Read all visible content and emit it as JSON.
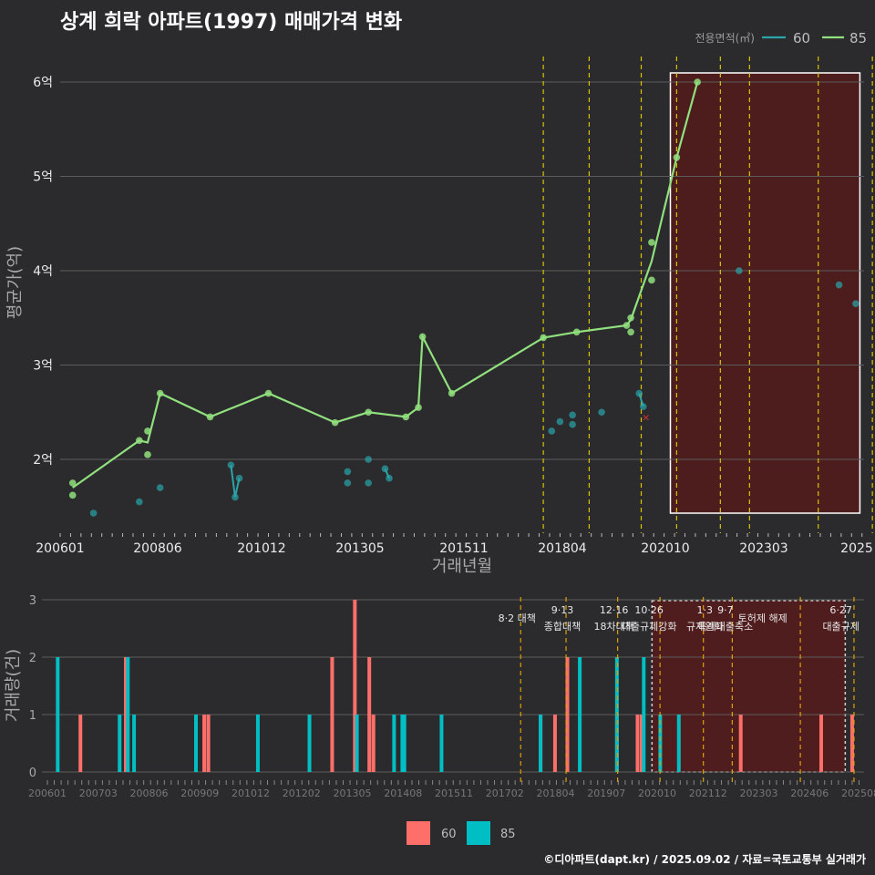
{
  "title": "상계 희락 아파트(1997) 매매가격 변화",
  "footer": "©디아파트(dapt.kr) / 2025.09.02 / 자료=국토교통부 실거래가",
  "colors": {
    "c60": "#2aa5a9",
    "c85": "#90e07e",
    "bar60": "#ff6f6a",
    "bar85": "#00bfc4",
    "vline": "#d8c400",
    "shade": "#5a1a1a"
  },
  "chart_data": [
    {
      "type": "line",
      "title": "상계 희락 아파트(1997) 매매가격 변화",
      "xlabel": "거래년월",
      "ylabel": "평균가(억)",
      "x_ticks": [
        "200601",
        "200806",
        "201012",
        "201305",
        "201511",
        "201804",
        "202010",
        "202303",
        "2025"
      ],
      "y_ticks": [
        "2억",
        "3억",
        "4억",
        "5억",
        "6억"
      ],
      "ylim": [
        1.25,
        6.4
      ],
      "legend": {
        "title": "전용면적(㎡)",
        "entries": [
          "60",
          "85"
        ],
        "position": "top-right"
      },
      "series": [
        {
          "name": "85",
          "points": [
            [
              2006.3,
              1.62
            ],
            [
              2006.3,
              1.75
            ],
            [
              2007.9,
              2.2
            ],
            [
              2008.1,
              2.3
            ],
            [
              2008.1,
              2.05
            ],
            [
              2008.4,
              2.7
            ],
            [
              2009.6,
              2.45
            ],
            [
              2011.0,
              2.7
            ],
            [
              2012.6,
              2.39
            ],
            [
              2013.4,
              2.5
            ],
            [
              2014.3,
              2.45
            ],
            [
              2014.6,
              2.55
            ],
            [
              2014.7,
              3.3
            ],
            [
              2015.4,
              2.7
            ],
            [
              2017.6,
              3.29
            ],
            [
              2018.4,
              3.35
            ],
            [
              2019.6,
              3.42
            ],
            [
              2019.7,
              3.5
            ],
            [
              2019.7,
              3.35
            ],
            [
              2020.2,
              3.9
            ],
            [
              2020.2,
              4.3
            ],
            [
              2020.8,
              5.2
            ],
            [
              2021.3,
              6.0
            ]
          ],
          "line": [
            [
              2006.3,
              1.7
            ],
            [
              2007.9,
              2.2
            ],
            [
              2008.1,
              2.18
            ],
            [
              2008.4,
              2.7
            ],
            [
              2009.6,
              2.45
            ],
            [
              2011.0,
              2.7
            ],
            [
              2012.6,
              2.39
            ],
            [
              2013.4,
              2.5
            ],
            [
              2014.3,
              2.45
            ],
            [
              2014.6,
              2.55
            ],
            [
              2014.7,
              3.3
            ],
            [
              2015.4,
              2.7
            ],
            [
              2017.6,
              3.29
            ],
            [
              2018.4,
              3.35
            ],
            [
              2019.6,
              3.42
            ],
            [
              2019.7,
              3.48
            ],
            [
              2020.2,
              4.1
            ],
            [
              2020.8,
              5.2
            ],
            [
              2021.3,
              6.0
            ]
          ]
        },
        {
          "name": "60",
          "points": [
            [
              2006.8,
              1.43
            ],
            [
              2007.9,
              1.55
            ],
            [
              2008.4,
              1.7
            ],
            [
              2010.1,
              1.94
            ],
            [
              2010.2,
              1.6
            ],
            [
              2010.3,
              1.8
            ],
            [
              2012.9,
              1.87
            ],
            [
              2012.9,
              1.75
            ],
            [
              2013.4,
              2.0
            ],
            [
              2013.4,
              1.75
            ],
            [
              2013.8,
              1.9
            ],
            [
              2013.9,
              1.8
            ],
            [
              2017.8,
              2.3
            ],
            [
              2018.0,
              2.4
            ],
            [
              2018.3,
              2.47
            ],
            [
              2018.3,
              2.37
            ],
            [
              2019.0,
              2.5
            ],
            [
              2019.9,
              2.7
            ],
            [
              2020.0,
              2.56
            ],
            [
              2022.3,
              4.0
            ],
            [
              2024.7,
              3.85
            ],
            [
              2025.1,
              3.65
            ]
          ],
          "line": [
            [
              2010.1,
              1.94
            ],
            [
              2010.2,
              1.6
            ],
            [
              2010.3,
              1.8
            ],
            [
              2013.8,
              1.9
            ],
            [
              2013.9,
              1.8
            ],
            [
              2019.9,
              2.7
            ],
            [
              2020.0,
              2.56
            ]
          ],
          "cancelled": [
            [
              2020.0,
              2.45
            ]
          ]
        }
      ],
      "policy_dates": [
        2017.6,
        2018.7,
        2019.95,
        2020.8,
        2021.85,
        2022.55,
        2024.2,
        2025.5
      ],
      "highlight_range": [
        2020.65,
        2025.2
      ]
    },
    {
      "type": "bar",
      "ylabel": "거래량(건)",
      "x_ticks": [
        "200601",
        "200703",
        "200806",
        "200909",
        "201012",
        "201202",
        "201305",
        "201408",
        "201511",
        "201702",
        "201804",
        "201907",
        "202010",
        "202112",
        "202303",
        "202406",
        "202508"
      ],
      "y_ticks": [
        "0",
        "1",
        "2",
        "3"
      ],
      "ylim": [
        0,
        3
      ],
      "legend": {
        "entries": [
          "60",
          "85"
        ],
        "position": "bottom"
      },
      "series": [
        {
          "name": "60",
          "x": [
            2006.8,
            2007.9,
            2009.8,
            2009.9,
            2012.9,
            2013.45,
            2013.8,
            2013.9,
            2017.95,
            2018.3,
            2018.6,
            2019.8,
            2020.3,
            2020.4,
            2022.8,
            2024.75,
            2025.5
          ],
          "values": [
            1,
            2,
            1,
            1,
            2,
            3,
            2,
            1,
            1,
            1,
            2,
            1,
            1,
            1,
            1,
            1,
            1
          ]
        },
        {
          "name": "85",
          "x": [
            2006.25,
            2007.75,
            2007.95,
            2008.1,
            2009.6,
            2011.1,
            2012.35,
            2013.5,
            2014.4,
            2014.6,
            2014.65,
            2015.55,
            2017.95,
            2018.9,
            2019.8,
            2020.45,
            2020.85,
            2021.3
          ],
          "values": [
            2,
            1,
            2,
            1,
            1,
            1,
            1,
            1,
            1,
            1,
            1,
            1,
            1,
            2,
            2,
            2,
            1,
            1
          ]
        }
      ],
      "policy_labels": [
        {
          "x": 2017.6,
          "lines": [
            "8·2 대책"
          ]
        },
        {
          "x": 2018.7,
          "lines": [
            "9·13",
            "종합대책"
          ]
        },
        {
          "x": 2019.95,
          "lines": [
            "12·16",
            "18차대책"
          ]
        },
        {
          "x": 2020.8,
          "lines": [
            "10·26",
            "대출규제강화"
          ]
        },
        {
          "x": 2022.15,
          "lines": [
            "1·3",
            "규제완화"
          ]
        },
        {
          "x": 2022.65,
          "lines": [
            "9·7",
            "특례대출축소"
          ]
        },
        {
          "x": 2023.55,
          "lines": [
            "토허제 해제"
          ]
        },
        {
          "x": 2025.45,
          "lines": [
            "6·27",
            "대출규제"
          ]
        }
      ],
      "highlight_range": [
        2020.65,
        2025.2
      ]
    }
  ]
}
